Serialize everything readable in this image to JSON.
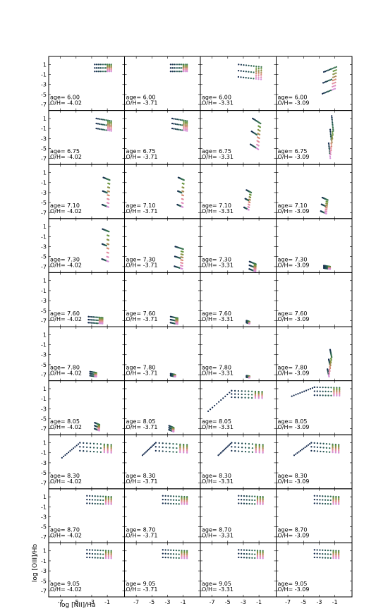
{
  "chart_data": {
    "type": "scatter",
    "layout": "grid",
    "xlabel": "log [NII]/Ha",
    "ylabel": "log [OIII]/Hb",
    "xlim": [
      -8.5,
      1.2
    ],
    "ylim": [
      -8.2,
      2.6
    ],
    "xticks": [
      -7,
      -5,
      -3,
      -1
    ],
    "yticks": [
      1,
      -1,
      -3,
      -5,
      -7
    ],
    "age_prefix": "age=",
    "oh_prefix": "O/H=",
    "oh_values": [
      "-4.02",
      "-3.71",
      "-3.31",
      "-3.09"
    ],
    "ages": [
      "6.00",
      "6.75",
      "7.10",
      "7.30",
      "7.60",
      "7.80",
      "8.05",
      "8.30",
      "8.70",
      "9.05"
    ],
    "colors": {
      "dark": "#13294d",
      "mid": "#2e6b53",
      "green": "#6f9a3a",
      "olive": "#9a8a4a",
      "salmon": "#d98a77",
      "pink": "#e68fb5",
      "violet": "#d58fd6"
    },
    "panels": [
      [
        {
          "x0": -2.6,
          "x1": -0.5,
          "y0": 1.0,
          "y1": 1.0,
          "len": 1.4,
          "angle": -90
        },
        {
          "x0": -2.6,
          "x1": -0.5,
          "y0": 1.0,
          "y1": 1.0,
          "len": 1.4,
          "angle": -90
        },
        {
          "x0": -3.6,
          "x1": -0.7,
          "y0": 1.0,
          "y1": 0.5,
          "len": 2.5,
          "angle": -95
        },
        {
          "x0": -2.4,
          "x1": -0.8,
          "y0": -0.5,
          "y1": 0.5,
          "len": 4.5,
          "angle": -105
        }
      ],
      [
        {
          "x0": -2.4,
          "x1": -0.5,
          "y0": 1.0,
          "y1": 0.5,
          "len": 2.0,
          "angle": -90
        },
        {
          "x0": -2.4,
          "x1": -0.5,
          "y0": 1.0,
          "y1": 0.5,
          "len": 2.0,
          "angle": -90
        },
        {
          "x0": -1.8,
          "x1": -0.8,
          "y0": 1.0,
          "y1": 0.0,
          "len": 5.5,
          "angle": -110
        },
        {
          "x0": -1.4,
          "x1": -1.2,
          "y0": 1.5,
          "y1": -1.5,
          "len": 6.0,
          "angle": -115
        }
      ],
      [
        {
          "x0": -1.5,
          "x1": -0.7,
          "y0": 0.0,
          "y1": -0.5,
          "len": 5.5,
          "angle": -100
        },
        {
          "x0": -1.6,
          "x1": -0.9,
          "y0": 0.0,
          "y1": -0.5,
          "len": 5.5,
          "angle": -100
        },
        {
          "x0": -2.6,
          "x1": -2.0,
          "y0": -2.5,
          "y1": -3.0,
          "len": 4.0,
          "angle": -120
        },
        {
          "x0": -2.6,
          "x1": -1.9,
          "y0": -4.0,
          "y1": -4.5,
          "len": 3.0,
          "angle": -115
        }
      ],
      [
        {
          "x0": -1.6,
          "x1": -0.8,
          "y0": 0.5,
          "y1": 0.0,
          "len": 6.0,
          "angle": -95
        },
        {
          "x0": -2.0,
          "x1": -1.0,
          "y0": -3.0,
          "y1": -3.5,
          "len": 4.0,
          "angle": -100
        },
        {
          "x0": -2.2,
          "x1": -1.4,
          "y0": -6.0,
          "y1": -6.5,
          "len": 1.5,
          "angle": -100
        },
        {
          "x0": -2.4,
          "x1": -1.6,
          "y0": -6.8,
          "y1": -7.0,
          "len": 0.5,
          "angle": -90
        }
      ],
      [
        {
          "x0": -3.4,
          "x1": -1.6,
          "y0": -6.2,
          "y1": -6.4,
          "len": 1.2,
          "angle": -95
        },
        {
          "x0": -2.6,
          "x1": -1.7,
          "y0": -6.2,
          "y1": -6.5,
          "len": 1.2,
          "angle": -95
        },
        {
          "x0": -2.6,
          "x1": -2.2,
          "y0": -7.0,
          "y1": -7.2,
          "len": 0.4,
          "angle": -90
        },
        {
          "x0": 0.0,
          "x1": 0.0,
          "y0": 0.0,
          "y1": 0.0,
          "len": 0.0,
          "angle": -90,
          "empty": true
        }
      ],
      [
        {
          "x0": -3.2,
          "x1": -2.4,
          "y0": -6.4,
          "y1": -6.6,
          "len": 0.8,
          "angle": -95
        },
        {
          "x0": -2.6,
          "x1": -2.0,
          "y0": -6.8,
          "y1": -7.0,
          "len": 0.4,
          "angle": -90
        },
        {
          "x0": -2.6,
          "x1": -2.2,
          "y0": -7.2,
          "y1": -7.3,
          "len": 0.3,
          "angle": -90
        },
        {
          "x0": -1.6,
          "x1": -1.4,
          "y0": -2.0,
          "y1": -3.5,
          "len": 4.5,
          "angle": -120
        }
      ],
      [
        {
          "x0": -2.6,
          "x1": -2.0,
          "y0": -5.8,
          "y1": -6.2,
          "len": 1.2,
          "angle": -100
        },
        {
          "x0": -2.8,
          "x1": -2.2,
          "y0": -6.4,
          "y1": -6.8,
          "len": 0.8,
          "angle": -95
        },
        {
          "x0": -4.5,
          "x1": -0.6,
          "y0": 0.6,
          "y1": 0.4,
          "len": 1.3,
          "angle": -90,
          "tail": [
            -7.5,
            -3.5
          ]
        },
        {
          "x0": -3.6,
          "x1": -0.4,
          "y0": 1.3,
          "y1": 1.2,
          "len": 1.6,
          "angle": -90,
          "tail": [
            -6.5,
            -0.5
          ]
        }
      ],
      [
        {
          "x0": -4.5,
          "x1": -0.5,
          "y0": 1.0,
          "y1": 0.6,
          "len": 1.6,
          "angle": -90,
          "tail": [
            -6.8,
            -2.0
          ]
        },
        {
          "x0": -4.5,
          "x1": -0.5,
          "y0": 1.0,
          "y1": 0.6,
          "len": 1.6,
          "angle": -90,
          "tail": [
            -6.2,
            -1.5
          ]
        },
        {
          "x0": -4.5,
          "x1": -0.5,
          "y0": 1.0,
          "y1": 0.6,
          "len": 1.6,
          "angle": -90,
          "tail": [
            -6.2,
            -1.5
          ]
        },
        {
          "x0": -4.0,
          "x1": -0.5,
          "y0": 1.0,
          "y1": 0.6,
          "len": 1.6,
          "angle": -90,
          "tail": [
            -6.2,
            -1.5
          ]
        }
      ],
      [
        {
          "x0": -3.6,
          "x1": -0.5,
          "y0": 1.2,
          "y1": 1.0,
          "len": 1.5,
          "angle": -90
        },
        {
          "x0": -3.6,
          "x1": -0.5,
          "y0": 1.2,
          "y1": 1.0,
          "len": 1.5,
          "angle": -90
        },
        {
          "x0": -3.6,
          "x1": -0.5,
          "y0": 1.2,
          "y1": 1.0,
          "len": 1.5,
          "angle": -90
        },
        {
          "x0": -3.6,
          "x1": -0.5,
          "y0": 1.2,
          "y1": 1.0,
          "len": 1.5,
          "angle": -90
        }
      ],
      [
        {
          "x0": -3.6,
          "x1": -0.5,
          "y0": 1.2,
          "y1": 1.0,
          "len": 1.5,
          "angle": -90
        },
        {
          "x0": -3.6,
          "x1": -0.5,
          "y0": 1.2,
          "y1": 1.0,
          "len": 1.5,
          "angle": -90
        },
        {
          "x0": -3.6,
          "x1": -0.5,
          "y0": 1.2,
          "y1": 1.0,
          "len": 1.5,
          "angle": -90
        },
        {
          "x0": -3.6,
          "x1": -0.5,
          "y0": 1.2,
          "y1": 1.0,
          "len": 1.5,
          "angle": -90
        }
      ]
    ]
  }
}
